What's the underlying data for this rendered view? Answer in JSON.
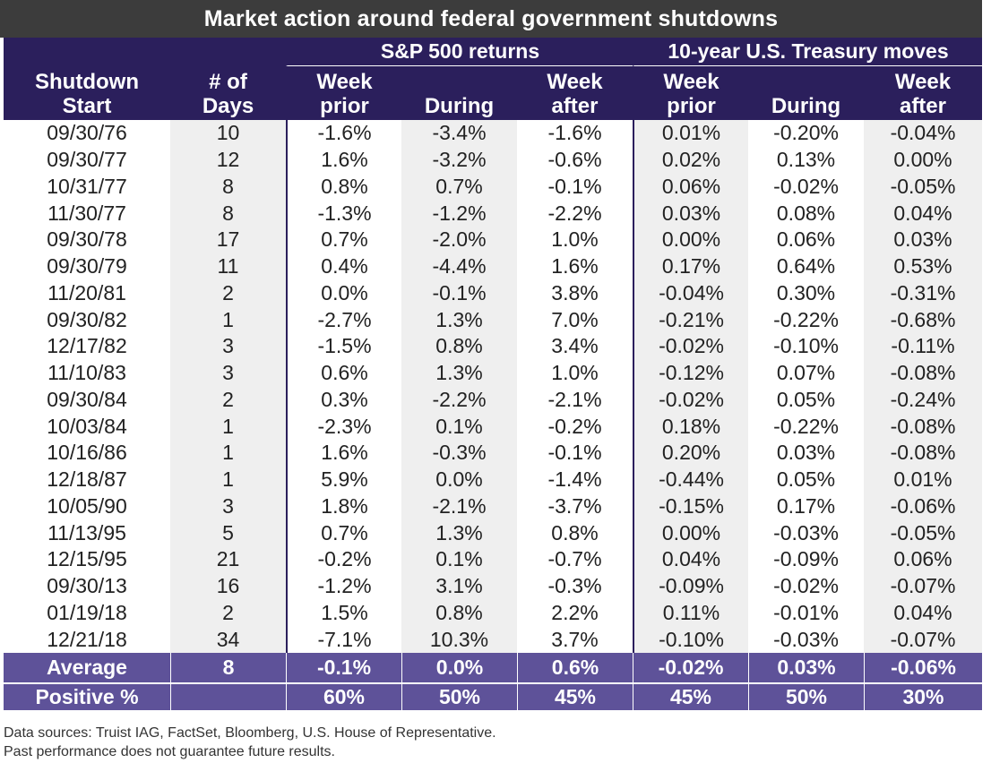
{
  "title": "Market action around federal government shutdowns",
  "header": {
    "sp_group": "S&P 500 returns",
    "ty_group": "10-year U.S. Treasury moves",
    "col_start": [
      "Shutdown",
      "Start"
    ],
    "col_days": [
      "# of",
      "Days"
    ],
    "col_week_prior": [
      "Week",
      "prior"
    ],
    "col_during": "During",
    "col_week_after": [
      "Week",
      "after"
    ]
  },
  "rows": [
    [
      "09/30/76",
      "10",
      "-1.6%",
      "-3.4%",
      "-1.6%",
      "0.01%",
      "-0.20%",
      "-0.04%"
    ],
    [
      "09/30/77",
      "12",
      "1.6%",
      "-3.2%",
      "-0.6%",
      "0.02%",
      "0.13%",
      "0.00%"
    ],
    [
      "10/31/77",
      "8",
      "0.8%",
      "0.7%",
      "-0.1%",
      "0.06%",
      "-0.02%",
      "-0.05%"
    ],
    [
      "11/30/77",
      "8",
      "-1.3%",
      "-1.2%",
      "-2.2%",
      "0.03%",
      "0.08%",
      "0.04%"
    ],
    [
      "09/30/78",
      "17",
      "0.7%",
      "-2.0%",
      "1.0%",
      "0.00%",
      "0.06%",
      "0.03%"
    ],
    [
      "09/30/79",
      "11",
      "0.4%",
      "-4.4%",
      "1.6%",
      "0.17%",
      "0.64%",
      "0.53%"
    ],
    [
      "11/20/81",
      "2",
      "0.0%",
      "-0.1%",
      "3.8%",
      "-0.04%",
      "0.30%",
      "-0.31%"
    ],
    [
      "09/30/82",
      "1",
      "-2.7%",
      "1.3%",
      "7.0%",
      "-0.21%",
      "-0.22%",
      "-0.68%"
    ],
    [
      "12/17/82",
      "3",
      "-1.5%",
      "0.8%",
      "3.4%",
      "-0.02%",
      "-0.10%",
      "-0.11%"
    ],
    [
      "11/10/83",
      "3",
      "0.6%",
      "1.3%",
      "1.0%",
      "-0.12%",
      "0.07%",
      "-0.08%"
    ],
    [
      "09/30/84",
      "2",
      "0.3%",
      "-2.2%",
      "-2.1%",
      "-0.02%",
      "0.05%",
      "-0.24%"
    ],
    [
      "10/03/84",
      "1",
      "-2.3%",
      "0.1%",
      "-0.2%",
      "0.18%",
      "-0.22%",
      "-0.08%"
    ],
    [
      "10/16/86",
      "1",
      "1.6%",
      "-0.3%",
      "-0.1%",
      "0.20%",
      "0.03%",
      "-0.08%"
    ],
    [
      "12/18/87",
      "1",
      "5.9%",
      "0.0%",
      "-1.4%",
      "-0.44%",
      "0.05%",
      "0.01%"
    ],
    [
      "10/05/90",
      "3",
      "1.8%",
      "-2.1%",
      "-3.7%",
      "-0.15%",
      "0.17%",
      "-0.06%"
    ],
    [
      "11/13/95",
      "5",
      "0.7%",
      "1.3%",
      "0.8%",
      "0.00%",
      "-0.03%",
      "-0.05%"
    ],
    [
      "12/15/95",
      "21",
      "-0.2%",
      "0.1%",
      "-0.7%",
      "0.04%",
      "-0.09%",
      "0.06%"
    ],
    [
      "09/30/13",
      "16",
      "-1.2%",
      "3.1%",
      "-0.3%",
      "-0.09%",
      "-0.02%",
      "-0.07%"
    ],
    [
      "01/19/18",
      "2",
      "1.5%",
      "0.8%",
      "2.2%",
      "0.11%",
      "-0.01%",
      "0.04%"
    ],
    [
      "12/21/18",
      "34",
      "-7.1%",
      "10.3%",
      "3.7%",
      "-0.10%",
      "-0.03%",
      "-0.07%"
    ]
  ],
  "footer": [
    [
      "Average",
      "8",
      "-0.1%",
      "0.0%",
      "0.6%",
      "-0.02%",
      "0.03%",
      "-0.06%"
    ],
    [
      "Positive %",
      "",
      "60%",
      "50%",
      "45%",
      "45%",
      "50%",
      "30%"
    ]
  ],
  "sources": [
    "Data sources: Truist IAG, FactSet, Bloomberg, U.S. House of Representative.",
    "Past performance does not guarantee future results."
  ],
  "colors": {
    "header_bg": "#2b1f5c",
    "footer_bg": "#5e5299",
    "title_bg": "#3c3c3c",
    "shade_bg": "#efefef"
  }
}
